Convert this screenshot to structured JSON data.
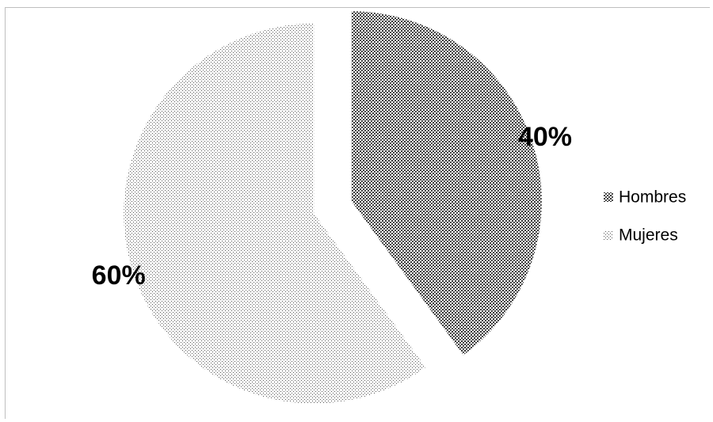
{
  "chart_data": {
    "type": "pie",
    "title": "",
    "categories": [
      "Hombres",
      "Mujeres"
    ],
    "values": [
      40,
      60
    ],
    "value_labels": [
      "40%",
      "60%"
    ],
    "start_angle_deg": 0,
    "direction": "clockwise",
    "exploded": true,
    "legend": {
      "position": "right",
      "entries": [
        {
          "label": "Hombres",
          "pattern": "dense-checker"
        },
        {
          "label": "Mujeres",
          "pattern": "sparse-dots"
        }
      ]
    },
    "colors": {
      "hombres_fill": "#3a3a3a",
      "mujeres_fill": "#555555",
      "background": "#ffffff",
      "border": "#bfbfbf"
    }
  }
}
